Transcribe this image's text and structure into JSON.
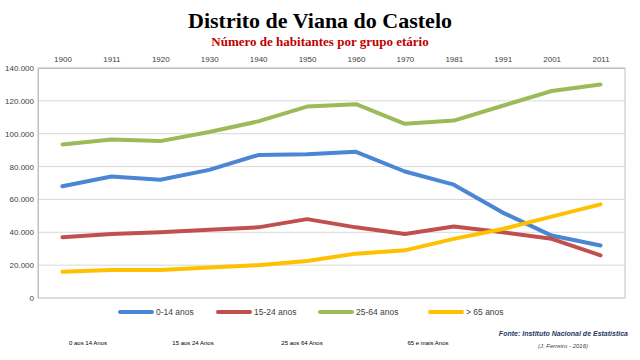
{
  "chart_data": {
    "type": "line",
    "title": "Distrito de Viana do Castelo",
    "subtitle": "Número de habitantes por grupo etário",
    "categories": [
      "1900",
      "1911",
      "1920",
      "1930",
      "1940",
      "1950",
      "1960",
      "1970",
      "1981",
      "1991",
      "2001",
      "2011"
    ],
    "series": [
      {
        "name": "0-14 anos",
        "color": "#4a86d4",
        "values": [
          68000,
          74000,
          72000,
          78000,
          87000,
          87500,
          89000,
          77000,
          69000,
          52000,
          38000,
          32000
        ]
      },
      {
        "name": "15-24 anos",
        "color": "#c0504d",
        "values": [
          37000,
          39000,
          40000,
          41500,
          43000,
          48000,
          43000,
          39000,
          43500,
          40000,
          36000,
          26000
        ]
      },
      {
        "name": "25-64 anos",
        "color": "#9bbb59",
        "values": [
          93500,
          96500,
          95500,
          101000,
          107500,
          116500,
          118000,
          106000,
          108000,
          117000,
          126000,
          130000
        ]
      },
      {
        "name": "> 65 anos",
        "color": "#ffc000",
        "values": [
          16000,
          17000,
          17000,
          18500,
          20000,
          22500,
          27000,
          29000,
          36000,
          42000,
          49500,
          57000
        ]
      }
    ],
    "ylim": [
      0,
      140000
    ],
    "yticks": [
      0,
      {
        "value": 20000,
        "label": "20.000"
      },
      {
        "value": 40000,
        "label": "40.000"
      },
      {
        "value": 60000,
        "label": "60.000"
      },
      {
        "value": 80000,
        "label": "80.000"
      },
      {
        "value": 100000,
        "label": "100.000"
      },
      {
        "value": 120000,
        "label": "120.000"
      },
      {
        "value": 140000,
        "label": "140.000"
      }
    ],
    "grid": true,
    "legend": "bottom",
    "annotations": [
      "0 aos 14 Anos",
      "15 aos 24 Anos",
      "25 aos 64 Anos",
      "65 e mais Anos"
    ],
    "source": "Fonte: Instituto Nacional de Estatística",
    "credit": "(J. Ferreiro - 2016)"
  }
}
